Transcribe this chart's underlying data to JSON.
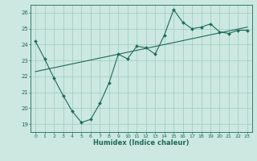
{
  "xlabel": "Humidex (Indice chaleur)",
  "bg_color": "#cce8e0",
  "line_color": "#1a6b5a",
  "grid_color": "#99ccbb",
  "xlim": [
    -0.5,
    23.5
  ],
  "ylim": [
    18.5,
    26.5
  ],
  "yticks": [
    19,
    20,
    21,
    22,
    23,
    24,
    25,
    26
  ],
  "xticks": [
    0,
    1,
    2,
    3,
    4,
    5,
    6,
    7,
    8,
    9,
    10,
    11,
    12,
    13,
    14,
    15,
    16,
    17,
    18,
    19,
    20,
    21,
    22,
    23
  ],
  "line1_x": [
    0,
    1,
    2,
    3,
    4,
    5,
    6,
    7,
    8,
    9,
    10,
    11,
    12,
    13,
    14,
    15,
    16,
    17,
    18,
    19,
    20,
    21,
    22,
    23
  ],
  "line1_y": [
    24.2,
    23.1,
    21.9,
    20.8,
    19.8,
    19.1,
    19.3,
    20.3,
    21.6,
    23.4,
    23.1,
    23.9,
    23.8,
    23.4,
    24.6,
    26.2,
    25.4,
    25.0,
    25.1,
    25.3,
    24.8,
    24.7,
    24.9,
    24.9
  ],
  "line2_x": [
    0,
    23
  ],
  "line2_y": [
    22.3,
    25.1
  ]
}
